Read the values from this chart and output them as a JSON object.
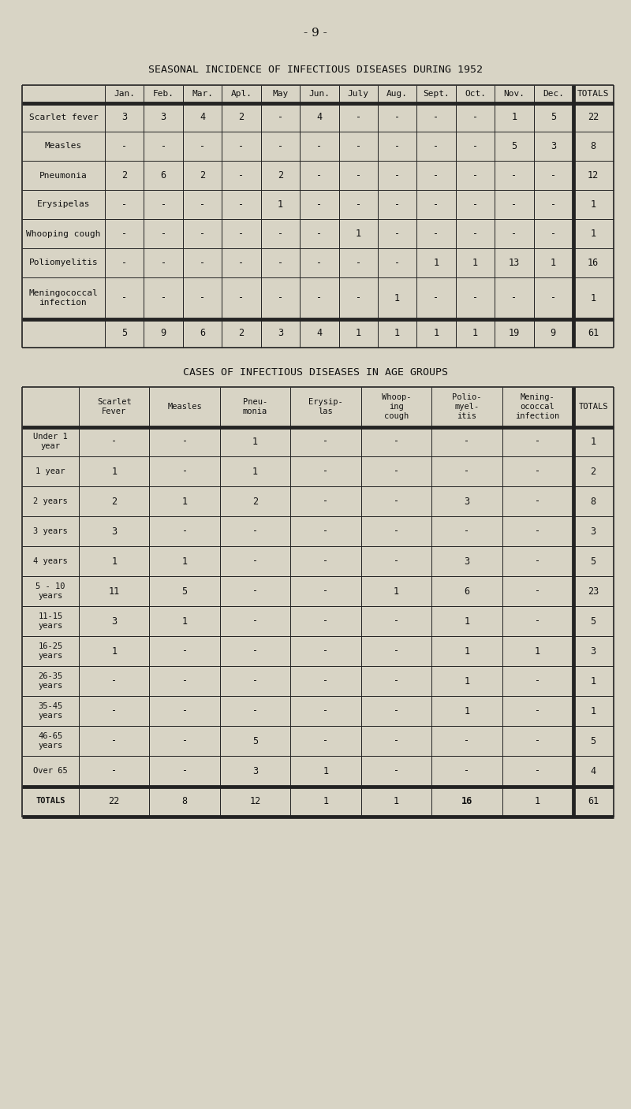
{
  "page_number": "- 9 -",
  "title1": "SEASONAL INCIDENCE OF INFECTIOUS DISEASES DURING 1952",
  "title2": "CASES OF INFECTIOUS DISEASES IN AGE GROUPS",
  "bg_color": "#d8d4c5",
  "table1": {
    "col_headers": [
      "Jan.",
      "Feb.",
      "Mar.",
      "Apl.",
      "May",
      "Jun.",
      "July",
      "Aug.",
      "Sept.",
      "Oct.",
      "Nov.",
      "Dec.",
      "TOTALS"
    ],
    "row_headers": [
      "Scarlet fever",
      "Measles",
      "Pneumonia",
      "Erysipelas",
      "Whooping cough",
      "Poliomyelitis",
      "Meningococcal\ninfection"
    ],
    "data": [
      [
        "3",
        "3",
        "4",
        "2",
        "-",
        "4",
        "-",
        "-",
        "-",
        "-",
        "1",
        "5",
        "22"
      ],
      [
        "-",
        "-",
        "-",
        "-",
        "-",
        "-",
        "-",
        "-",
        "-",
        "-",
        "5",
        "3",
        "8"
      ],
      [
        "2",
        "6",
        "2",
        "-",
        "2",
        "-",
        "-",
        "-",
        "-",
        "-",
        "-",
        "-",
        "12"
      ],
      [
        "-",
        "-",
        "-",
        "-",
        "1",
        "-",
        "-",
        "-",
        "-",
        "-",
        "-",
        "-",
        "1"
      ],
      [
        "-",
        "-",
        "-",
        "-",
        "-",
        "-",
        "1",
        "-",
        "-",
        "-",
        "-",
        "-",
        "1"
      ],
      [
        "-",
        "-",
        "-",
        "-",
        "-",
        "-",
        "-",
        "-",
        "1",
        "1",
        "13",
        "1",
        "16"
      ],
      [
        "-",
        "-",
        "-",
        "-",
        "-",
        "-",
        "-",
        "1",
        "-",
        "-",
        "-",
        "-",
        "1"
      ]
    ],
    "totals_row": [
      "5",
      "9",
      "6",
      "2",
      "3",
      "4",
      "1",
      "1",
      "1",
      "1",
      "19",
      "9",
      "61"
    ]
  },
  "table2": {
    "col_headers": [
      "Scarlet\nFever",
      "Measles",
      "Pneu-\nmonia",
      "Erysip-\nlas",
      "Whoop-\ning\ncough",
      "Polio-\nmyel-\nitis",
      "Mening-\nococcal\ninfection",
      "TOTALS"
    ],
    "row_headers": [
      "Under 1\nyear",
      "1 year",
      "2 years",
      "3 years",
      "4 years",
      "5 - 10\nyears",
      "11-15\nyears",
      "16-25\nyears",
      "26-35\nyears",
      "35-45\nyears",
      "46-65\nyears",
      "Over 65",
      "TOTALS"
    ],
    "data": [
      [
        "-",
        "-",
        "1",
        "-",
        "-",
        "-",
        "-",
        "1"
      ],
      [
        "1",
        "-",
        "1",
        "-",
        "-",
        "-",
        "-",
        "2"
      ],
      [
        "2",
        "1",
        "2",
        "-",
        "-",
        "3",
        "-",
        "8"
      ],
      [
        "3",
        "-",
        "-",
        "-",
        "-",
        "-",
        "-",
        "3"
      ],
      [
        "1",
        "1",
        "-",
        "-",
        "-",
        "3",
        "-",
        "5"
      ],
      [
        "11",
        "5",
        "-",
        "-",
        "1",
        "6",
        "-",
        "23"
      ],
      [
        "3",
        "1",
        "-",
        "-",
        "-",
        "1",
        "-",
        "5"
      ],
      [
        "1",
        "-",
        "-",
        "-",
        "-",
        "1",
        "1",
        "3"
      ],
      [
        "-",
        "-",
        "-",
        "-",
        "-",
        "1",
        "-",
        "1"
      ],
      [
        "-",
        "-",
        "-",
        "-",
        "-",
        "1",
        "-",
        "1"
      ],
      [
        "-",
        "-",
        "5",
        "-",
        "-",
        "-",
        "-",
        "5"
      ],
      [
        "-",
        "-",
        "3",
        "1",
        "-",
        "-",
        "-",
        "4"
      ],
      [
        "22",
        "8",
        "12",
        "1",
        "1",
        "16",
        "1",
        "61"
      ]
    ]
  }
}
